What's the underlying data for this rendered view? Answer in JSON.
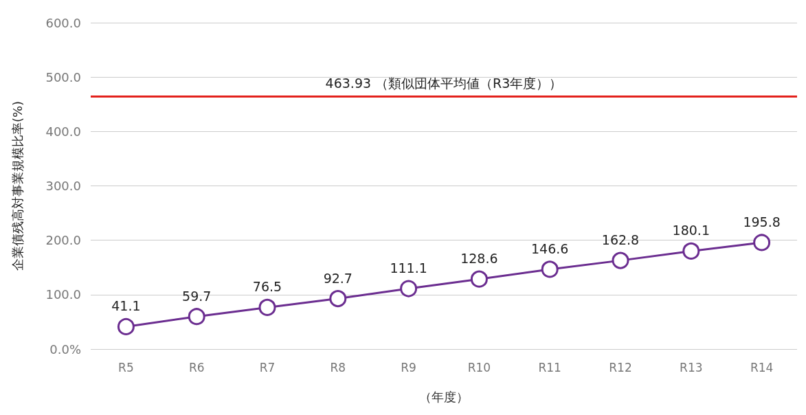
{
  "chart_data": {
    "type": "line",
    "xlabel": "（年度）",
    "ylabel": "企業債残高対事業規模比率(%)",
    "categories": [
      "R5",
      "R6",
      "R7",
      "R8",
      "R9",
      "R10",
      "R11",
      "R12",
      "R13",
      "R14"
    ],
    "series": [
      {
        "color": "#6b2d90",
        "values": [
          41.1,
          59.7,
          76.5,
          92.7,
          111.1,
          128.6,
          146.6,
          162.8,
          180.1,
          195.8
        ]
      }
    ],
    "ylim": [
      0,
      600
    ],
    "yticks": [
      {
        "value": 0,
        "label": "0.0%"
      },
      {
        "value": 100,
        "label": "100.0"
      },
      {
        "value": 200,
        "label": "200.0"
      },
      {
        "value": 300,
        "label": "300.0"
      },
      {
        "value": 400,
        "label": "400.0"
      },
      {
        "value": 500,
        "label": "500.0"
      },
      {
        "value": 600,
        "label": "600.0"
      }
    ],
    "ref_lines": [
      {
        "axis": "y",
        "value": 463.93,
        "label": "463.93 （類似団体平均値（R3年度））",
        "color": "#e3211c"
      }
    ],
    "grid": "y",
    "marker": "circle",
    "data_labels": true
  }
}
